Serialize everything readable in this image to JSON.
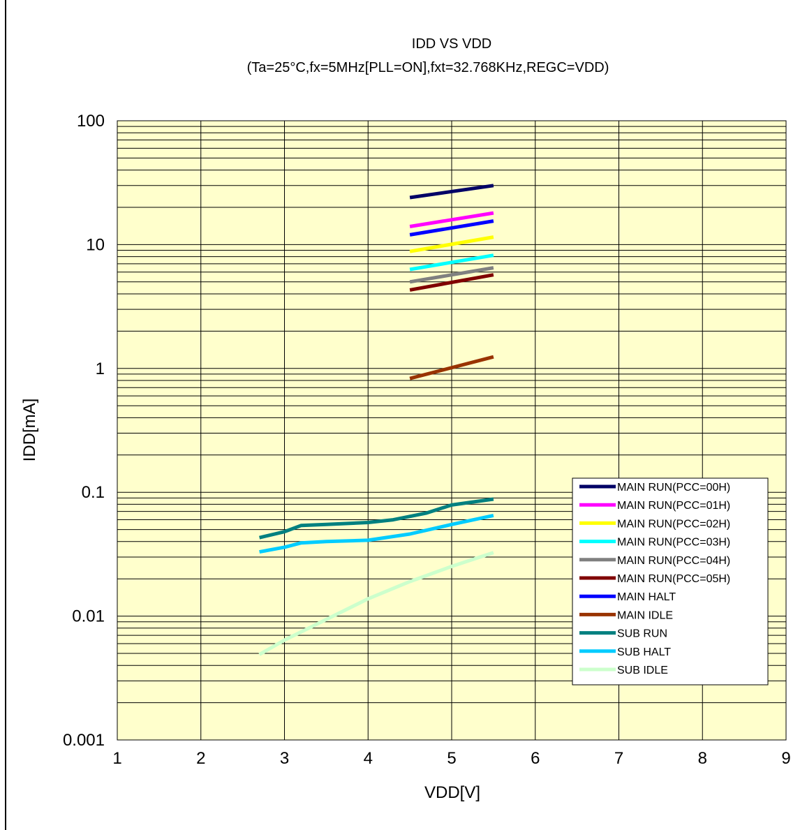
{
  "chart_data": {
    "type": "line",
    "title": "IDD VS VDD",
    "subtitle": "(Ta=25°C,fx=5MHz[PLL=ON],fxt=32.768KHz,REGC=VDD)",
    "xlabel": "VDD[V]",
    "ylabel": "IDD[mA]",
    "xlim": [
      1,
      9
    ],
    "ylim": [
      0.001,
      100
    ],
    "yscale": "log",
    "x_ticks": [
      "1",
      "2",
      "3",
      "4",
      "5",
      "6",
      "7",
      "8",
      "9"
    ],
    "y_ticks": [
      "0.001",
      "0.01",
      "0.1",
      "1",
      "10",
      "100"
    ],
    "grid": true,
    "plot_background": "#ffffcc",
    "legend_position": "bottom-right",
    "series": [
      {
        "name": "MAIN RUN(PCC=00H)",
        "color": "#000066",
        "x": [
          4.5,
          5.5
        ],
        "y": [
          24,
          30
        ]
      },
      {
        "name": "MAIN RUN(PCC=01H)",
        "color": "#ff00ff",
        "x": [
          4.5,
          5.5
        ],
        "y": [
          14,
          18
        ]
      },
      {
        "name": "MAIN RUN(PCC=02H)",
        "color": "#ffff00",
        "x": [
          4.5,
          5.5
        ],
        "y": [
          8.8,
          11.5
        ]
      },
      {
        "name": "MAIN RUN(PCC=03H)",
        "color": "#00ffff",
        "x": [
          4.5,
          5.5
        ],
        "y": [
          6.3,
          8.2
        ]
      },
      {
        "name": "MAIN RUN(PCC=04H)",
        "color": "#808080",
        "x": [
          4.5,
          5.5
        ],
        "y": [
          5.0,
          6.5
        ]
      },
      {
        "name": "MAIN RUN(PCC=05H)",
        "color": "#800000",
        "x": [
          4.5,
          5.5
        ],
        "y": [
          4.3,
          5.7
        ]
      },
      {
        "name": "MAIN HALT",
        "color": "#0000ff",
        "x": [
          4.5,
          5.5
        ],
        "y": [
          12,
          15.5
        ]
      },
      {
        "name": "MAIN IDLE",
        "color": "#993300",
        "x": [
          4.5,
          5.5
        ],
        "y": [
          0.83,
          1.24
        ]
      },
      {
        "name": "SUB RUN",
        "color": "#008080",
        "x": [
          2.7,
          3.0,
          3.2,
          3.5,
          4.0,
          4.3,
          4.7,
          5.0,
          5.5
        ],
        "y": [
          0.043,
          0.048,
          0.054,
          0.055,
          0.057,
          0.06,
          0.068,
          0.079,
          0.088
        ]
      },
      {
        "name": "SUB HALT",
        "color": "#00ccff",
        "x": [
          2.7,
          3.0,
          3.2,
          3.5,
          4.0,
          4.5,
          5.0,
          5.5
        ],
        "y": [
          0.033,
          0.036,
          0.039,
          0.04,
          0.041,
          0.046,
          0.055,
          0.065
        ]
      },
      {
        "name": "SUB IDLE",
        "color": "#ccffcc",
        "x": [
          2.7,
          3.0,
          3.5,
          4.0,
          4.5,
          5.0,
          5.5
        ],
        "y": [
          0.0049,
          0.0064,
          0.0094,
          0.0138,
          0.019,
          0.0252,
          0.0326
        ]
      }
    ]
  }
}
